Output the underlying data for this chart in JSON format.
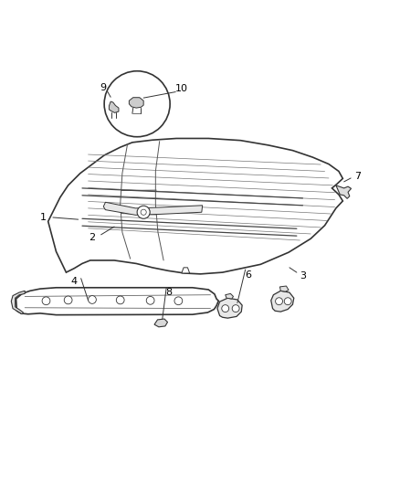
{
  "background_color": "#ffffff",
  "line_color": "#333333",
  "label_color": "#000000",
  "figsize": [
    4.39,
    5.33
  ],
  "dpi": 100
}
